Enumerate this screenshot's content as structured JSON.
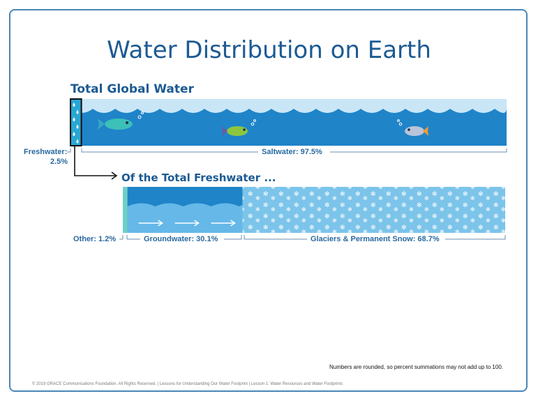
{
  "title": "Water Distribution on Earth",
  "sections": {
    "total": "Total Global Water",
    "fresh": "Of the Total Freshwater ..."
  },
  "labels": {
    "freshwater_line1": "Freshwater:",
    "freshwater_line2": "2.5%",
    "saltwater": "Saltwater: 97.5%",
    "other": "Other: 1.2%",
    "groundwater": "Groundwater: 30.1%",
    "glaciers": "Glaciers & Permanent Snow: 68.7%"
  },
  "note": "Numbers are rounded, so percent summations may not add up to 100.",
  "footer": "© 2019 GRACE Communications Foundation. All Rights Reserved. | Lessons for Understanding Our Water Footprint | Lesson 1: Water Resources and Water Footprints",
  "colors": {
    "saltwater": "#1f84c8",
    "wave": "#c9e6f7",
    "freshwater": "#29a7d4",
    "groundwater_top": "#1f84c8",
    "groundwater_bottom": "#65b8e8",
    "glacier": "#7cc4ea",
    "other": "#6fd0c4",
    "title": "#1c5a93"
  },
  "chart_data": [
    {
      "type": "bar",
      "title": "Total Global Water",
      "categories": [
        "Freshwater",
        "Saltwater"
      ],
      "values": [
        2.5,
        97.5
      ],
      "unit": "%"
    },
    {
      "type": "bar",
      "title": "Of the Total Freshwater ...",
      "categories": [
        "Other",
        "Groundwater",
        "Glaciers & Permanent Snow"
      ],
      "values": [
        1.2,
        30.1,
        68.7
      ],
      "unit": "%"
    }
  ]
}
